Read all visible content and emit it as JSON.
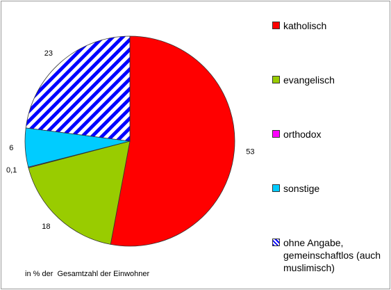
{
  "chart_data": {
    "type": "pie",
    "categories": [
      "katholisch",
      "evangelisch",
      "orthodox",
      "sonstige",
      "ohne Angabe, gemeinschaftlos (auch muslimisch)"
    ],
    "values": [
      53,
      18,
      0.1,
      6,
      23
    ],
    "value_labels": [
      "53",
      "18",
      "0,1",
      "6",
      "23"
    ],
    "colors": [
      "#ff0000",
      "#99cc00",
      "#ff00ff",
      "#00ccff",
      "#0000ff"
    ],
    "patterns": [
      null,
      null,
      null,
      null,
      "stripes"
    ],
    "legend": "right",
    "note": "in % der  Gesamtzahl der Einwohner"
  }
}
